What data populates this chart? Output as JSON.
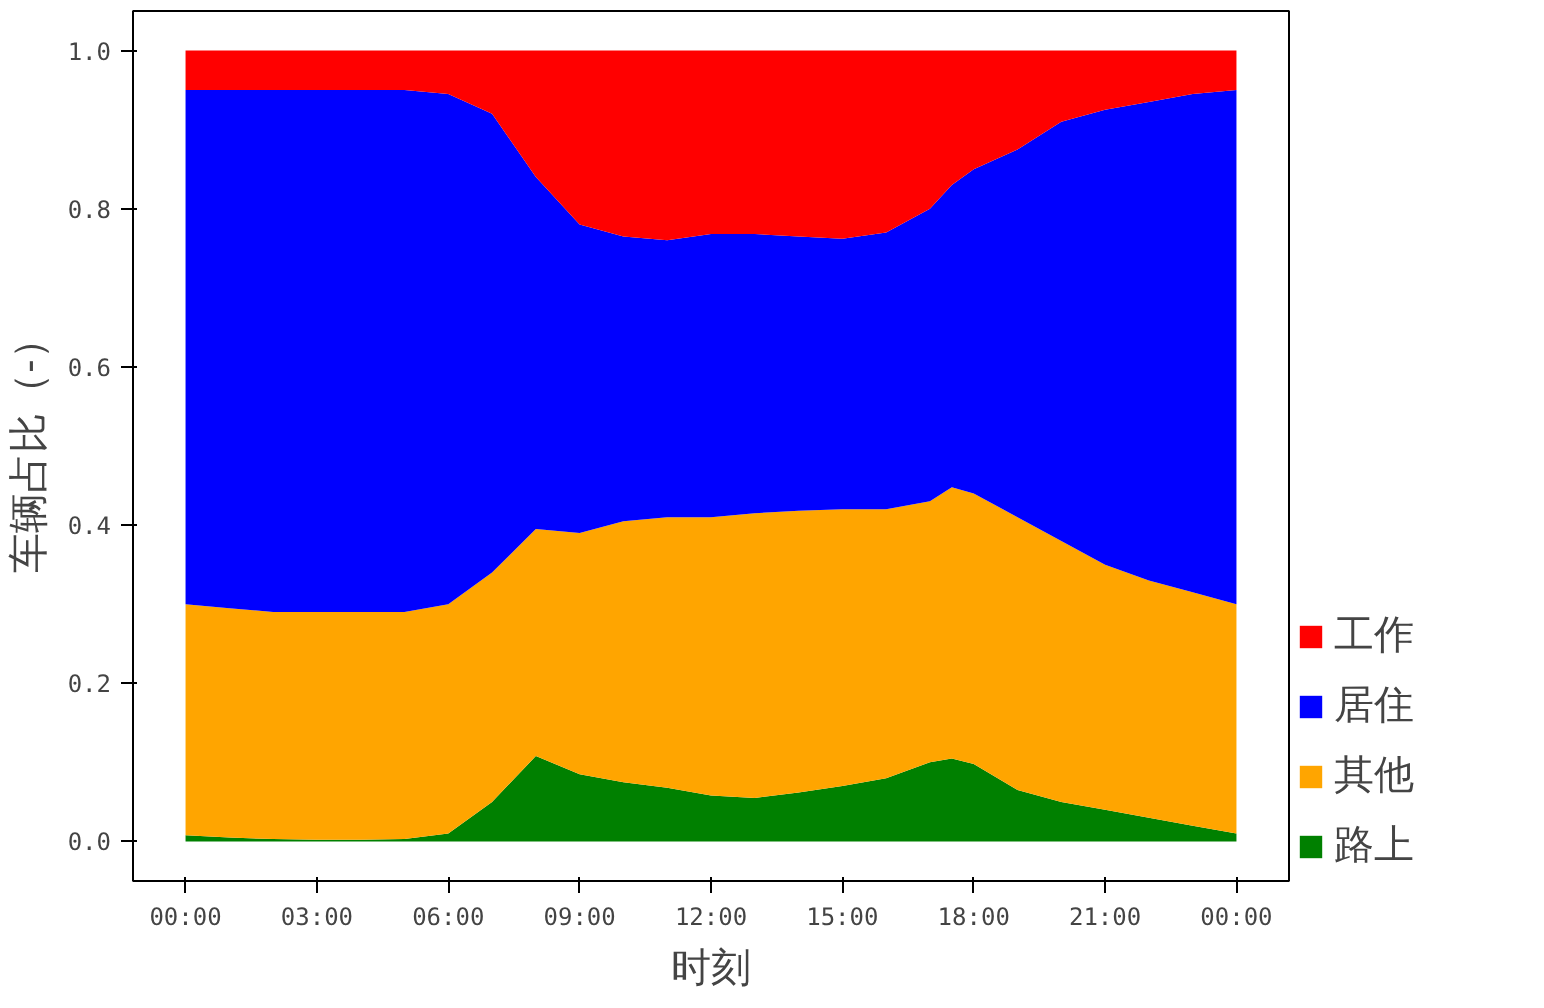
{
  "chart_data": {
    "type": "area",
    "stacked": true,
    "xlabel": "时刻",
    "ylabel": "车辆占比（-）",
    "x": [
      0,
      1,
      2,
      3,
      4,
      5,
      6,
      7,
      8,
      9,
      10,
      11,
      12,
      13,
      14,
      15,
      16,
      17,
      17.5,
      18,
      19,
      20,
      21,
      22,
      23,
      24
    ],
    "series": [
      {
        "name": "路上",
        "color": "#008000",
        "values": [
          0.008,
          0.005,
          0.003,
          0.002,
          0.002,
          0.003,
          0.01,
          0.05,
          0.108,
          0.085,
          0.075,
          0.068,
          0.058,
          0.055,
          0.062,
          0.07,
          0.08,
          0.1,
          0.105,
          0.098,
          0.065,
          0.05,
          0.04,
          0.03,
          0.02,
          0.01
        ]
      },
      {
        "name": "其他",
        "color": "#ffa500",
        "values": [
          0.292,
          0.29,
          0.287,
          0.288,
          0.288,
          0.287,
          0.29,
          0.29,
          0.287,
          0.305,
          0.33,
          0.342,
          0.352,
          0.36,
          0.356,
          0.35,
          0.34,
          0.33,
          0.343,
          0.342,
          0.345,
          0.33,
          0.31,
          0.3,
          0.295,
          0.29
        ]
      },
      {
        "name": "居住",
        "color": "#0000ff",
        "values": [
          0.65,
          0.655,
          0.66,
          0.66,
          0.66,
          0.66,
          0.645,
          0.58,
          0.445,
          0.39,
          0.36,
          0.35,
          0.358,
          0.353,
          0.347,
          0.342,
          0.35,
          0.37,
          0.382,
          0.41,
          0.465,
          0.53,
          0.575,
          0.605,
          0.63,
          0.65
        ]
      },
      {
        "name": "工作",
        "color": "#ff0000",
        "values": [
          0.05,
          0.05,
          0.05,
          0.05,
          0.05,
          0.05,
          0.055,
          0.08,
          0.16,
          0.22,
          0.235,
          0.24,
          0.232,
          0.232,
          0.235,
          0.238,
          0.23,
          0.2,
          0.17,
          0.15,
          0.125,
          0.09,
          0.075,
          0.065,
          0.055,
          0.05
        ]
      }
    ],
    "xlim": [
      -1.2,
      25.2
    ],
    "ylim": [
      -0.05,
      1.05
    ],
    "xticks": [
      {
        "value": 0,
        "label": "00:00"
      },
      {
        "value": 3,
        "label": "03:00"
      },
      {
        "value": 6,
        "label": "06:00"
      },
      {
        "value": 9,
        "label": "09:00"
      },
      {
        "value": 12,
        "label": "12:00"
      },
      {
        "value": 15,
        "label": "15:00"
      },
      {
        "value": 18,
        "label": "18:00"
      },
      {
        "value": 21,
        "label": "21:00"
      },
      {
        "value": 24,
        "label": "00:00"
      }
    ],
    "yticks": [
      {
        "value": 0,
        "label": "0.0"
      },
      {
        "value": 0.2,
        "label": "0.2"
      },
      {
        "value": 0.4,
        "label": "0.4"
      },
      {
        "value": 0.6,
        "label": "0.6"
      },
      {
        "value": 0.8,
        "label": "0.8"
      },
      {
        "value": 1.0,
        "label": "1.0"
      }
    ],
    "grid": false,
    "legend": "right"
  }
}
